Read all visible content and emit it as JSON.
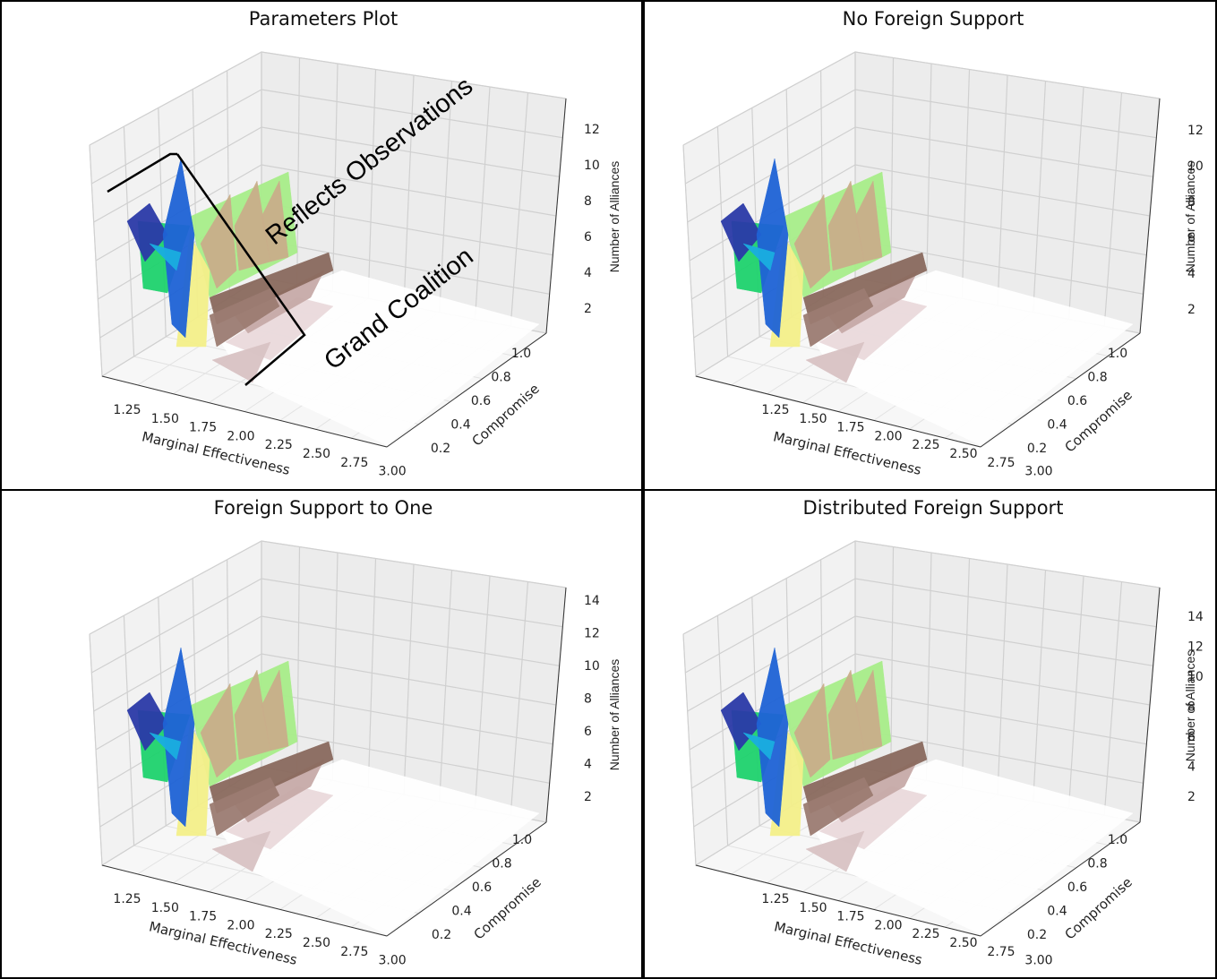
{
  "chart_data": [
    {
      "type": "surface3d",
      "title": "Parameters Plot",
      "xlabel": "Marginal Effectiveness",
      "ylabel": "Compromise",
      "zlabel": "Number of Alliances",
      "x_ticks": [
        "1.25",
        "1.50",
        "1.75",
        "2.00",
        "2.25",
        "2.50",
        "2.75",
        "3.00"
      ],
      "y_ticks": [
        "0.2",
        "0.4",
        "0.6",
        "0.8",
        "1.0"
      ],
      "z_ticks": [
        "2",
        "4",
        "6",
        "8",
        "10",
        "12"
      ],
      "xlim": [
        1.1,
        3.0
      ],
      "ylim": [
        0.1,
        1.0
      ],
      "zlim": [
        1,
        13
      ],
      "colormap": "terrain",
      "annotations": [
        "Reflects Observations",
        "Grand Coalition"
      ]
    },
    {
      "type": "surface3d",
      "title": "No Foreign Support",
      "xlabel": "Marginal Effectiveness",
      "ylabel": "Compromise",
      "zlabel": "Number of Alliances",
      "x_ticks": [
        "1.25",
        "1.50",
        "1.75",
        "2.00",
        "2.25",
        "2.50",
        "2.75",
        "3.00"
      ],
      "y_ticks": [
        "0.2",
        "0.4",
        "0.6",
        "0.8",
        "1.0"
      ],
      "z_ticks": [
        "2",
        "4",
        "6",
        "8",
        "10",
        "12"
      ],
      "xlim": [
        1.1,
        3.0
      ],
      "ylim": [
        0.1,
        1.0
      ],
      "zlim": [
        1,
        13
      ],
      "colormap": "terrain",
      "annotations": []
    },
    {
      "type": "surface3d",
      "title": "Foreign Support to One",
      "xlabel": "Marginal Effectiveness",
      "ylabel": "Compromise",
      "zlabel": "Number of Alliances",
      "x_ticks": [
        "1.25",
        "1.50",
        "1.75",
        "2.00",
        "2.25",
        "2.50",
        "2.75",
        "3.00"
      ],
      "y_ticks": [
        "0.2",
        "0.4",
        "0.6",
        "0.8",
        "1.0"
      ],
      "z_ticks": [
        "2",
        "4",
        "6",
        "8",
        "10",
        "12",
        "14"
      ],
      "xlim": [
        1.1,
        3.0
      ],
      "ylim": [
        0.1,
        1.0
      ],
      "zlim": [
        1,
        14.5
      ],
      "colormap": "terrain",
      "annotations": []
    },
    {
      "type": "surface3d",
      "title": "Distributed Foreign Support",
      "xlabel": "Marginal Effectiveness",
      "ylabel": "Compromise",
      "zlabel": "Number of Alliances",
      "x_ticks": [
        "1.25",
        "1.50",
        "1.75",
        "2.00",
        "2.25",
        "2.50",
        "2.75",
        "3.00"
      ],
      "y_ticks": [
        "0.2",
        "0.4",
        "0.6",
        "0.8",
        "1.0"
      ],
      "z_ticks": [
        "2",
        "4",
        "6",
        "8",
        "10",
        "12",
        "14"
      ],
      "xlim": [
        1.1,
        3.0
      ],
      "ylim": [
        0.1,
        1.0
      ],
      "zlim": [
        1,
        15
      ],
      "colormap": "terrain",
      "annotations": []
    }
  ],
  "colors": {
    "deep_blue": "#2b3aa8",
    "blue": "#1f63d6",
    "cyan": "#1aaee0",
    "green": "#1fd36e",
    "light_green": "#a8ee8a",
    "yellow": "#f4f08a",
    "tan": "#c9ae8a",
    "brown": "#8a6a5e",
    "pink_white": "#eadadc"
  }
}
